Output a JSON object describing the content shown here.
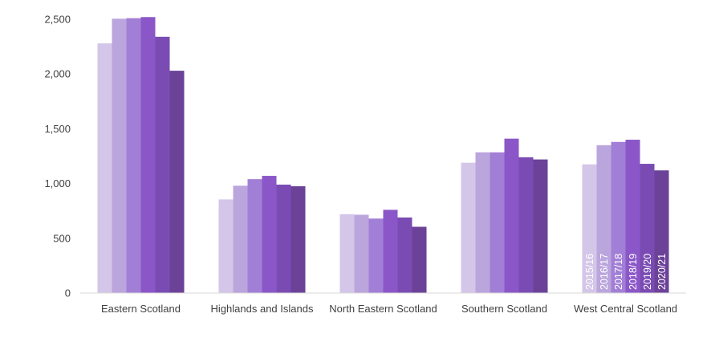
{
  "chart_data": {
    "type": "bar",
    "title": "",
    "xlabel": "",
    "ylabel": "",
    "ylim": [
      0,
      2500
    ],
    "yticks": [
      0,
      500,
      1000,
      1500,
      2000,
      2500
    ],
    "ytick_labels": [
      "0",
      "500",
      "1,000",
      "1,500",
      "2,000",
      "2,500"
    ],
    "grid": false,
    "legend": "in-bar labels on last category",
    "categories": [
      "Eastern Scotland",
      "Highlands and Islands",
      "North Eastern Scotland",
      "Southern Scotland",
      "West Central Scotland"
    ],
    "series": [
      {
        "name": "2015/16",
        "color": "#d4c6e8",
        "values": [
          2280,
          855,
          720,
          1190,
          1175
        ]
      },
      {
        "name": "2016/17",
        "color": "#bba5dd",
        "values": [
          2505,
          980,
          715,
          1285,
          1350
        ]
      },
      {
        "name": "2017/18",
        "color": "#a27fd6",
        "values": [
          2510,
          1040,
          680,
          1285,
          1380
        ]
      },
      {
        "name": "2018/19",
        "color": "#8b57c8",
        "values": [
          2520,
          1070,
          760,
          1410,
          1400
        ]
      },
      {
        "name": "2019/20",
        "color": "#7a4cb3",
        "values": [
          2340,
          990,
          690,
          1240,
          1180
        ]
      },
      {
        "name": "2020/21",
        "color": "#6b4298",
        "values": [
          2030,
          975,
          605,
          1220,
          1120
        ]
      }
    ]
  }
}
